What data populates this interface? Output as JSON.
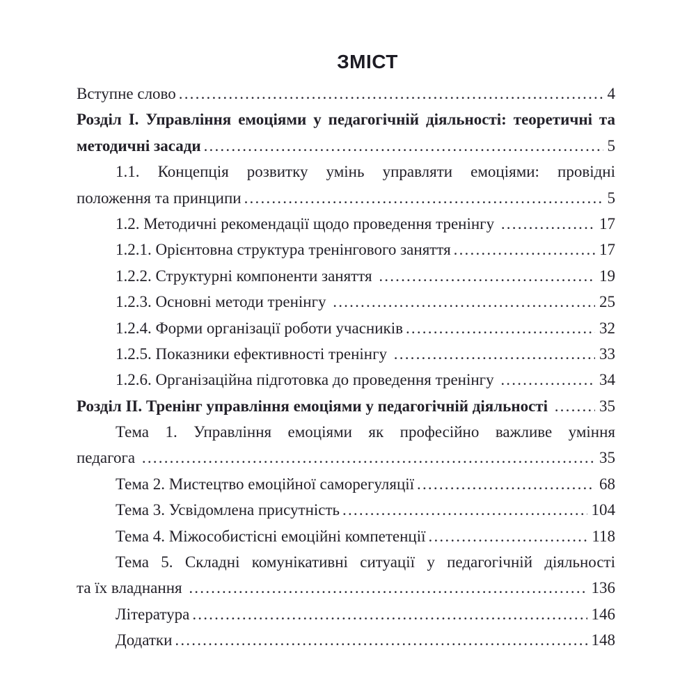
{
  "page_title": "ЗМІСТ",
  "toc": {
    "entries": [
      {
        "style": "plain",
        "lines": [
          "Вступне слово"
        ],
        "page": "4"
      },
      {
        "style": "bold",
        "lines": [
          "Розділ І. Управління емоціями у педагогічній діяльності: теоретичні та",
          "методичні засади"
        ],
        "page": "5"
      },
      {
        "style": "indent",
        "lines": [
          "1.1. Концепція розвитку умінь управляти емоціями: провідні",
          "положення та принципи"
        ],
        "page": "5"
      },
      {
        "style": "indent",
        "lines": [
          "1.2. Методичні рекомендації щодо проведення тренінгу "
        ],
        "page": "17"
      },
      {
        "style": "indent",
        "lines": [
          "1.2.1. Орієнтовна структура тренінгового заняття"
        ],
        "page": "17"
      },
      {
        "style": "indent",
        "lines": [
          "1.2.2. Структурні компоненти заняття "
        ],
        "page": "19"
      },
      {
        "style": "indent",
        "lines": [
          "1.2.3. Основні методи тренінгу "
        ],
        "page": "25"
      },
      {
        "style": "indent",
        "lines": [
          "1.2.4. Форми організації роботи учасників"
        ],
        "page": "32"
      },
      {
        "style": "indent",
        "lines": [
          "1.2.5. Показники ефективності тренінгу "
        ],
        "page": "33"
      },
      {
        "style": "indent",
        "lines": [
          "1.2.6. Організаційна підготовка до проведення тренінгу "
        ],
        "page": "34"
      },
      {
        "style": "bold",
        "lines": [
          "Розділ ІІ. Тренінг управління емоціями у педагогічній діяльності "
        ],
        "page": "35"
      },
      {
        "style": "indent",
        "lines": [
          "Тема 1. Управління емоціями  як професійно важливе уміння",
          "педагога "
        ],
        "page": "35"
      },
      {
        "style": "indent",
        "lines": [
          "Тема 2. Мистецтво емоційної саморегуляції"
        ],
        "page": "68"
      },
      {
        "style": "indent",
        "lines": [
          "Тема 3. Усвідомлена присутність"
        ],
        "page": "104"
      },
      {
        "style": "indent",
        "lines": [
          "Тема 4. Міжособистісні емоційні компетенції"
        ],
        "page": "118"
      },
      {
        "style": "indent",
        "lines": [
          "Тема 5. Складні комунікативні ситуації  у педагогічній діяльності",
          "та їх владнання "
        ],
        "page": "136"
      },
      {
        "style": "indent",
        "lines": [
          "Література"
        ],
        "page": "146"
      },
      {
        "style": "indent",
        "lines": [
          "Додатки"
        ],
        "page": "148"
      }
    ]
  }
}
